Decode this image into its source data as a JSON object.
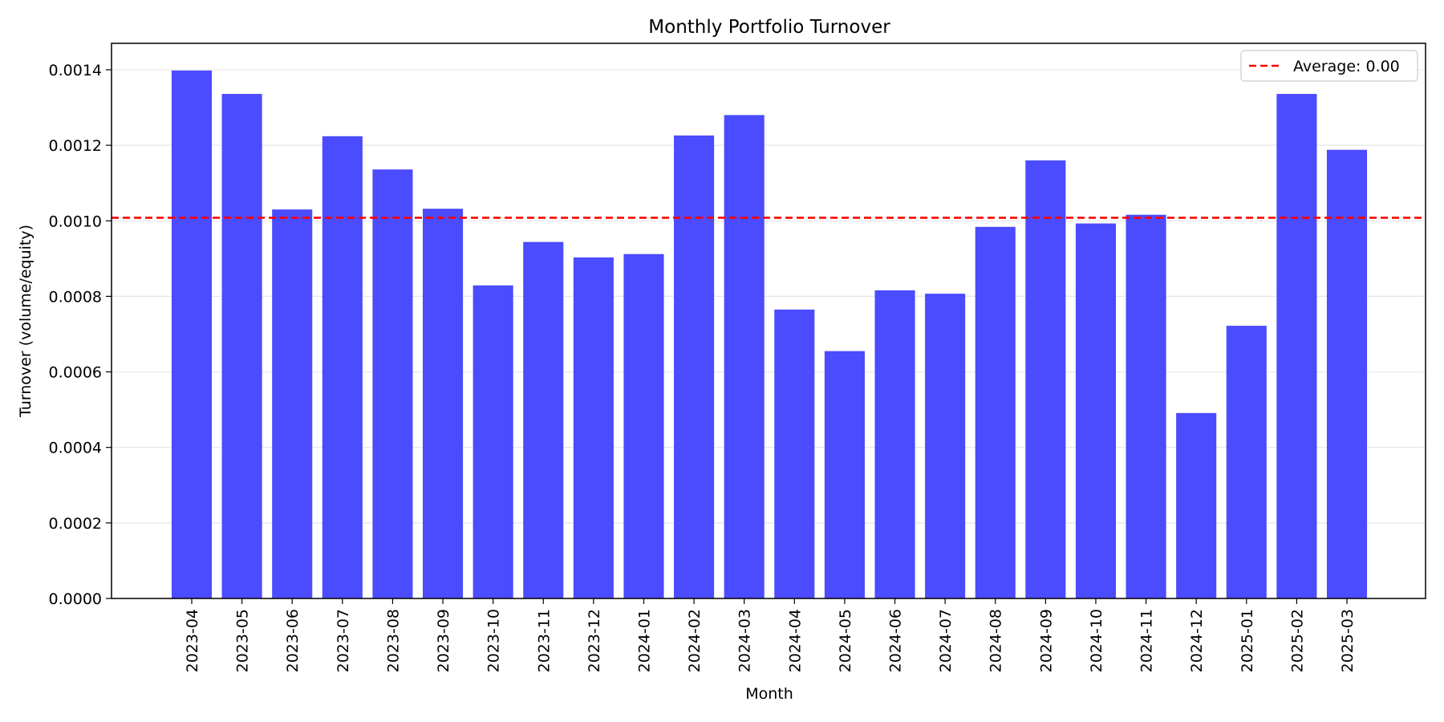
{
  "chart_data": {
    "type": "bar",
    "title": "Monthly Portfolio Turnover",
    "xlabel": "Month",
    "ylabel": "Turnover (volume/equity)",
    "categories": [
      "2023-04",
      "2023-05",
      "2023-06",
      "2023-07",
      "2023-08",
      "2023-09",
      "2023-10",
      "2023-11",
      "2023-12",
      "2024-01",
      "2024-02",
      "2024-03",
      "2024-04",
      "2024-05",
      "2024-06",
      "2024-07",
      "2024-08",
      "2024-09",
      "2024-10",
      "2024-11",
      "2024-12",
      "2025-01",
      "2025-02",
      "2025-03"
    ],
    "values": [
      0.001398,
      0.001336,
      0.00103,
      0.001224,
      0.001136,
      0.001032,
      0.000829,
      0.000944,
      0.000903,
      0.000912,
      0.001226,
      0.00128,
      0.000765,
      0.000655,
      0.000816,
      0.000807,
      0.000984,
      0.00116,
      0.000993,
      0.001016,
      0.000491,
      0.000722,
      0.001336,
      0.001188
    ],
    "ylim": [
      0,
      0.00147
    ],
    "yticks": [
      0.0,
      0.0002,
      0.0004,
      0.0006,
      0.0008,
      0.001,
      0.0012,
      0.0014
    ],
    "ytick_labels": [
      "0.0000",
      "0.0002",
      "0.0004",
      "0.0006",
      "0.0008",
      "0.0010",
      "0.0012",
      "0.0014"
    ],
    "bar_color": "#4b4bff",
    "grid": "y",
    "average_line": {
      "value": 0.001008,
      "color": "#ff0000",
      "style": "dashed"
    },
    "legend": {
      "placement": "top-right",
      "entries": [
        "Average: 0.00"
      ]
    }
  }
}
